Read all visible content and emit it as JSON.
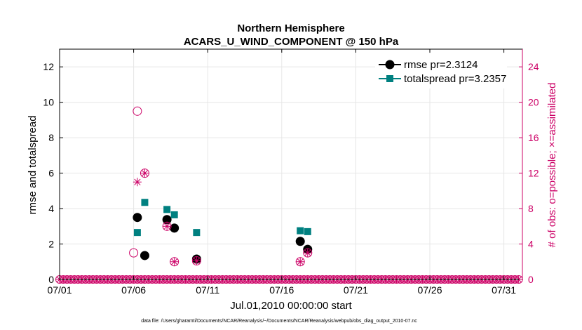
{
  "chart_data": {
    "type": "scatter",
    "title_line1": "Northern Hemisphere",
    "title_line2": "ACARS_U_WIND_COMPONENT @ 150 hPa",
    "xlabel": "Jul.01,2010 00:00:00 start",
    "ylabel_left": "rmse and totalspread",
    "ylabel_right": "# of obs: o=possible; ×=assimilated",
    "footnote": "data file: /Users/gharamti/Documents/NCAR/Reanalysis/~/Documents/NCAR/Reanalysis/webpub/obs_diag_output_2010-07.nc",
    "x_ticks": [
      {
        "day": 1,
        "label": "07/01"
      },
      {
        "day": 6,
        "label": "07/06"
      },
      {
        "day": 11,
        "label": "07/11"
      },
      {
        "day": 16,
        "label": "07/16"
      },
      {
        "day": 21,
        "label": "07/21"
      },
      {
        "day": 26,
        "label": "07/26"
      },
      {
        "day": 31,
        "label": "07/31"
      }
    ],
    "xlim": [
      1,
      32.25
    ],
    "ylim_left": [
      0,
      13
    ],
    "ylim_right": [
      0,
      26
    ],
    "y_ticks_left": [
      "0",
      "2",
      "4",
      "6",
      "8",
      "10",
      "12"
    ],
    "y_ticks_right": [
      "0",
      "4",
      "8",
      "12",
      "16",
      "20",
      "24"
    ],
    "grid": true,
    "legend_position": "top-right",
    "colors": {
      "rmse": "#000000",
      "totalspread": "#008080",
      "obs": "#cc0066",
      "grid": "#e6e6e6",
      "axis": "#000000"
    },
    "series": [
      {
        "name": "rmse",
        "legend_label": "rmse pr=2.3124",
        "marker": "circle",
        "points": [
          [
            6.25,
            3.5
          ],
          [
            6.75,
            1.35
          ],
          [
            8.25,
            3.38
          ],
          [
            8.75,
            2.9
          ],
          [
            10.25,
            1.15
          ],
          [
            17.25,
            2.15
          ],
          [
            17.75,
            1.7
          ]
        ]
      },
      {
        "name": "totalspread",
        "legend_label": "totalspread pr=3.2357",
        "marker": "square",
        "points": [
          [
            6.25,
            2.65
          ],
          [
            6.75,
            4.35
          ],
          [
            8.25,
            3.95
          ],
          [
            8.75,
            3.65
          ],
          [
            10.25,
            2.65
          ],
          [
            17.25,
            2.75
          ],
          [
            17.75,
            2.7
          ]
        ]
      },
      {
        "name": "obs_possible",
        "marker": "open-circle",
        "axis": "right",
        "points": [
          [
            6.0,
            3.0
          ],
          [
            6.25,
            19.0
          ],
          [
            6.75,
            12.0
          ],
          [
            8.25,
            6.0
          ],
          [
            8.75,
            2.0
          ],
          [
            10.25,
            2.1
          ],
          [
            17.25,
            2.0
          ],
          [
            17.75,
            3.0
          ]
        ]
      },
      {
        "name": "obs_assimilated",
        "marker": "asterisk",
        "axis": "right",
        "points": [
          [
            6.25,
            11.0
          ],
          [
            6.75,
            12.0
          ],
          [
            8.25,
            6.0
          ],
          [
            8.75,
            2.0
          ],
          [
            10.25,
            2.1
          ],
          [
            17.25,
            2.0
          ],
          [
            17.75,
            3.0
          ]
        ]
      }
    ],
    "zero_marker_range": [
      1.0,
      32.0
    ],
    "zero_marker_step": 0.25
  }
}
